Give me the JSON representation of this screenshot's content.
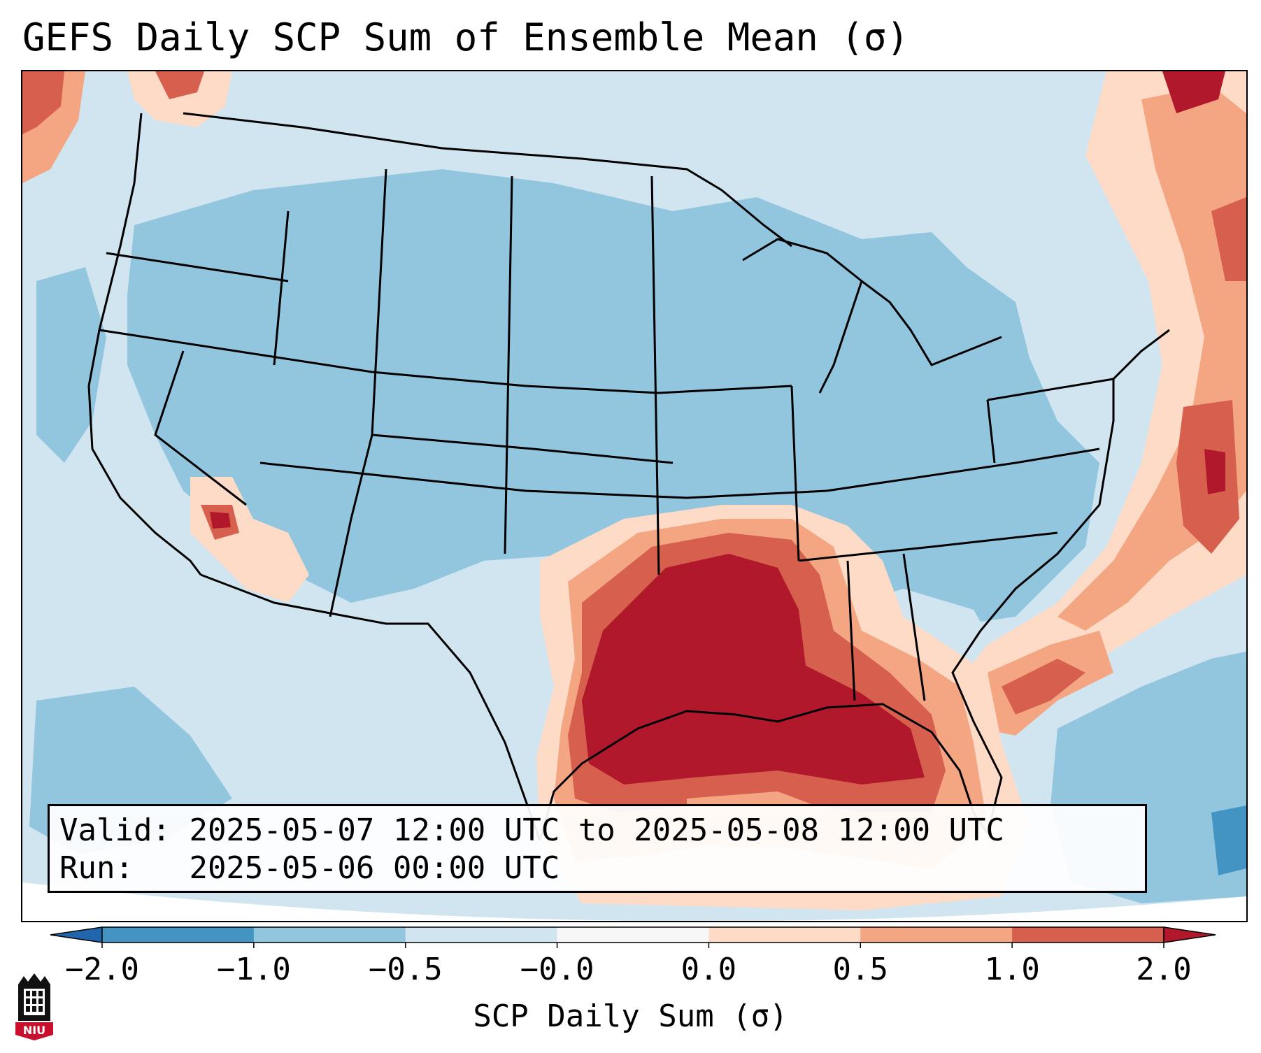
{
  "title": "GEFS Daily SCP Sum of Ensemble Mean (σ)",
  "info": {
    "valid_label": "Valid:",
    "valid_value": "2025-05-07 12:00 UTC to 2025-05-08 12:00 UTC",
    "run_label": "Run:",
    "run_value": "2025-05-06 00:00 UTC"
  },
  "colorbar": {
    "label": "SCP Daily Sum (σ)",
    "ticks": [
      "−2.0",
      "−1.0",
      "−0.5",
      "−0.0",
      "0.0",
      "0.5",
      "1.0",
      "2.0"
    ],
    "bins": [
      {
        "color": "#4393c3"
      },
      {
        "color": "#92c5de"
      },
      {
        "color": "#d1e5f0"
      },
      {
        "color": "#f7f7f7"
      },
      {
        "color": "#fddbc7"
      },
      {
        "color": "#f4a582"
      },
      {
        "color": "#d6604d"
      }
    ],
    "extend_low_color": "#2166ac",
    "extend_high_color": "#b2182b"
  },
  "map": {
    "projection": "Lambert Conformal",
    "region": "Contiguous United States",
    "high_anomaly_region": "Southern Plains, Lower Mississippi Valley and Gulf Coast",
    "colors": {
      "background_light_blue": "#d1e5f0",
      "medium_blue": "#92c5de",
      "dark_blue": "#4393c3",
      "light_orange": "#fddbc7",
      "orange": "#f4a582",
      "red_orange": "#d6604d",
      "dark_red": "#b2182b",
      "near_zero": "#f7f7f7"
    }
  },
  "logo": {
    "text": "NIU",
    "color": "#c8102e"
  }
}
